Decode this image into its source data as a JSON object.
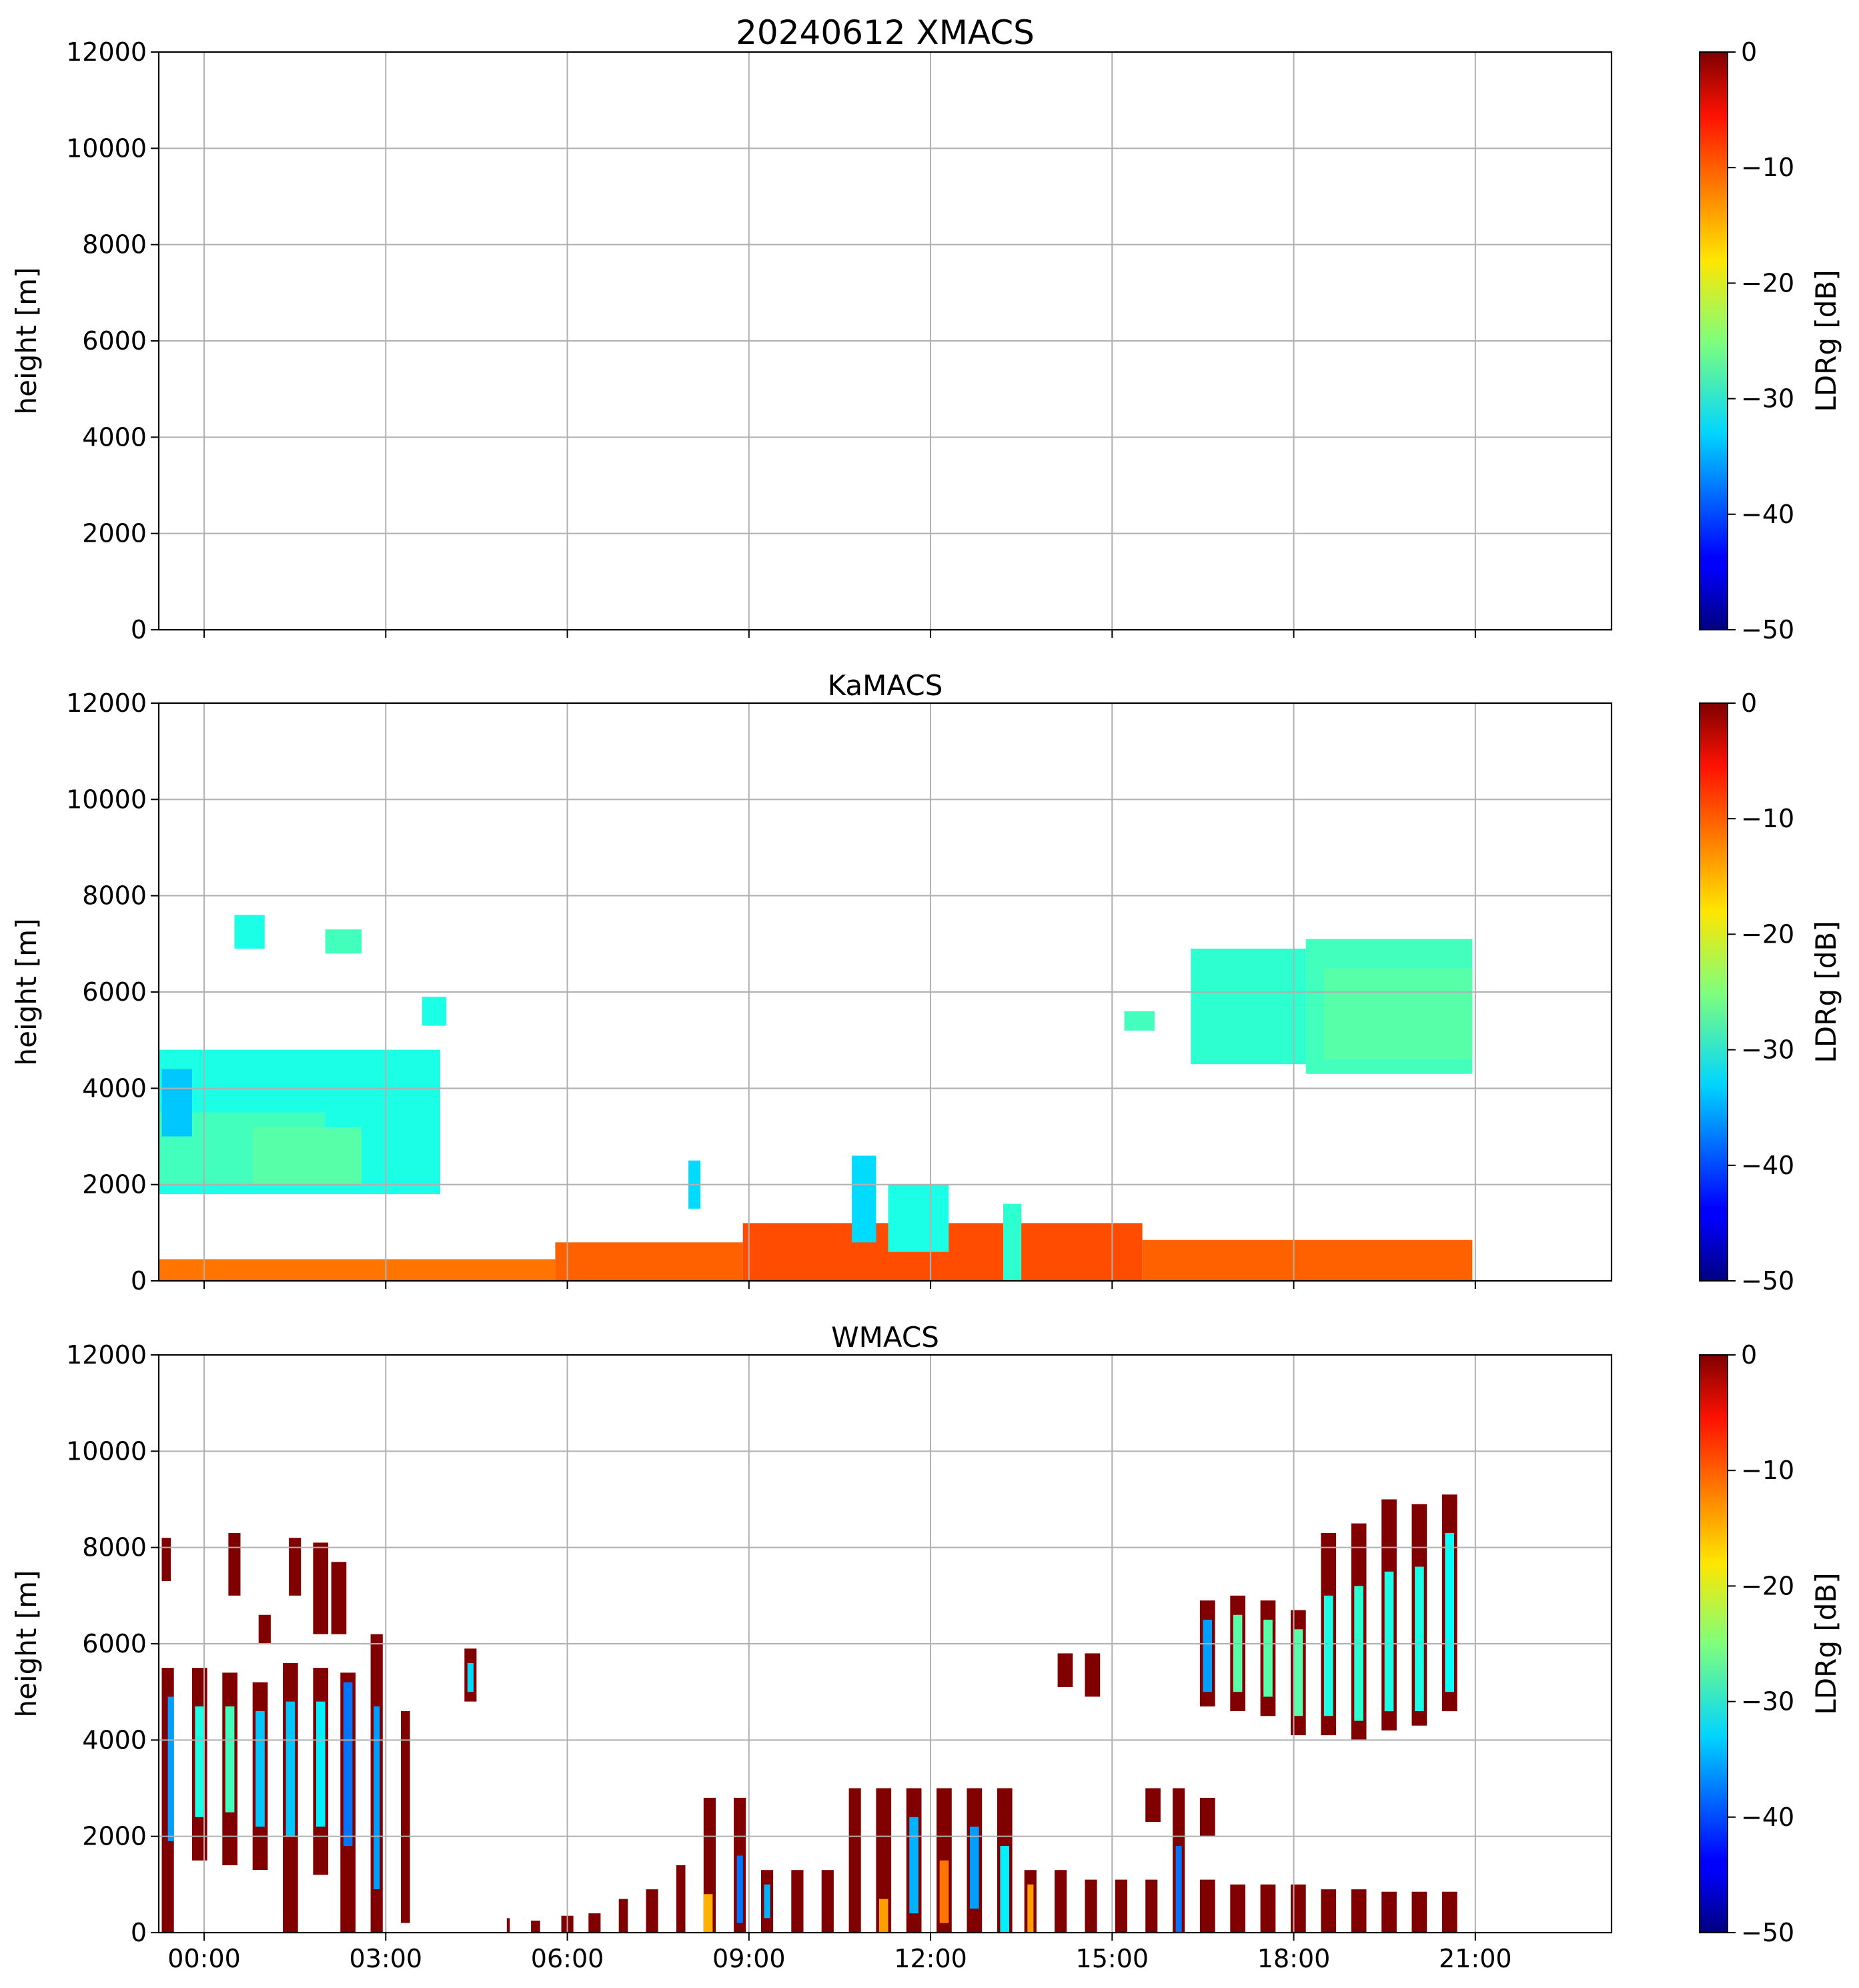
{
  "chart_data": [
    {
      "type": "heatmap",
      "title": "20240612 XMACS",
      "xlabel": "",
      "ylabel": "height [m]",
      "xlim_hours": [
        -0.75,
        23.25
      ],
      "ylim": [
        0,
        12000
      ],
      "yticks": [
        0,
        2000,
        4000,
        6000,
        8000,
        10000,
        12000
      ],
      "xticks_hours": [
        0,
        3,
        6,
        9,
        12,
        15,
        18,
        21
      ],
      "xtick_labels": [],
      "grid": true,
      "colorbar": {
        "label": "LDRg [dB]",
        "min": -50,
        "max": 0,
        "ticks": [
          0,
          -10,
          -20,
          -30,
          -40,
          -50
        ],
        "tick_labels": [
          "0",
          "−10",
          "−20",
          "−30",
          "−40",
          "−50"
        ],
        "colormap": "jet"
      },
      "regions": []
    },
    {
      "type": "heatmap",
      "title": "KaMACS",
      "xlabel": "",
      "ylabel": "height [m]",
      "xlim_hours": [
        -0.75,
        23.25
      ],
      "ylim": [
        0,
        12000
      ],
      "yticks": [
        0,
        2000,
        4000,
        6000,
        8000,
        10000,
        12000
      ],
      "xticks_hours": [
        0,
        3,
        6,
        9,
        12,
        15,
        18,
        21
      ],
      "xtick_labels": [],
      "grid": true,
      "colorbar": {
        "label": "LDRg [dB]",
        "min": -50,
        "max": 0,
        "ticks": [
          0,
          -10,
          -20,
          -30,
          -40,
          -50
        ],
        "tick_labels": [
          "0",
          "−10",
          "−20",
          "−30",
          "−40",
          "−50"
        ],
        "colormap": "jet"
      },
      "regions": [
        {
          "t0": -0.75,
          "t1": 3.9,
          "h0": 1800,
          "h1": 4800,
          "ldr": -30
        },
        {
          "t0": -0.75,
          "t1": 2.0,
          "h0": 2000,
          "h1": 3500,
          "ldr": -28
        },
        {
          "t0": 0.8,
          "t1": 2.6,
          "h0": 2000,
          "h1": 3200,
          "ldr": -27
        },
        {
          "t0": -0.7,
          "t1": -0.2,
          "h0": 3000,
          "h1": 4400,
          "ldr": -34
        },
        {
          "t0": -0.75,
          "t1": 5.8,
          "h0": 0,
          "h1": 450,
          "ldr": -12
        },
        {
          "t0": 5.8,
          "t1": 8.9,
          "h0": 0,
          "h1": 800,
          "ldr": -11
        },
        {
          "t0": 8.9,
          "t1": 15.5,
          "h0": 0,
          "h1": 1200,
          "ldr": -10
        },
        {
          "t0": 15.5,
          "t1": 20.95,
          "h0": 0,
          "h1": 850,
          "ldr": -11
        },
        {
          "t0": 10.7,
          "t1": 11.1,
          "h0": 800,
          "h1": 2600,
          "ldr": -33
        },
        {
          "t0": 11.3,
          "t1": 12.3,
          "h0": 600,
          "h1": 2000,
          "ldr": -30
        },
        {
          "t0": 13.2,
          "t1": 13.5,
          "h0": 0,
          "h1": 1600,
          "ldr": -29
        },
        {
          "t0": 8.0,
          "t1": 8.2,
          "h0": 1500,
          "h1": 2500,
          "ldr": -33
        },
        {
          "t0": 16.3,
          "t1": 18.2,
          "h0": 4500,
          "h1": 6900,
          "ldr": -29
        },
        {
          "t0": 18.2,
          "t1": 20.95,
          "h0": 4300,
          "h1": 7100,
          "ldr": -28
        },
        {
          "t0": 18.5,
          "t1": 20.95,
          "h0": 4600,
          "h1": 6500,
          "ldr": -27
        },
        {
          "t0": 3.6,
          "t1": 4.0,
          "h0": 5300,
          "h1": 5900,
          "ldr": -30
        },
        {
          "t0": 15.2,
          "t1": 15.7,
          "h0": 5200,
          "h1": 5600,
          "ldr": -28
        },
        {
          "t0": 0.5,
          "t1": 1.0,
          "h0": 6900,
          "h1": 7600,
          "ldr": -30
        },
        {
          "t0": 2.0,
          "t1": 2.6,
          "h0": 6800,
          "h1": 7300,
          "ldr": -28
        }
      ]
    },
    {
      "type": "heatmap",
      "title": "WMACS",
      "xlabel": "",
      "ylabel": "height [m]",
      "xlim_hours": [
        -0.75,
        23.25
      ],
      "ylim": [
        0,
        12000
      ],
      "yticks": [
        0,
        2000,
        4000,
        6000,
        8000,
        10000,
        12000
      ],
      "xticks_hours": [
        0,
        3,
        6,
        9,
        12,
        15,
        18,
        21
      ],
      "xtick_labels": [
        "00:00",
        "03:00",
        "06:00",
        "09:00",
        "12:00",
        "15:00",
        "18:00",
        "21:00"
      ],
      "grid": true,
      "colorbar": {
        "label": "LDRg [dB]",
        "min": -50,
        "max": 0,
        "ticks": [
          0,
          -10,
          -20,
          -30,
          -40,
          -50
        ],
        "tick_labels": [
          "0",
          "−10",
          "−20",
          "−30",
          "−40",
          "−50"
        ],
        "colormap": "jet"
      },
      "regions": [
        {
          "t0": -0.7,
          "t1": -0.5,
          "h0": 0,
          "h1": 5500,
          "ldr": 0
        },
        {
          "t0": -0.6,
          "t1": -0.5,
          "h0": 1900,
          "h1": 4900,
          "ldr": -36
        },
        {
          "t0": -0.7,
          "t1": -0.55,
          "h0": 7300,
          "h1": 8200,
          "ldr": 0
        },
        {
          "t0": -0.2,
          "t1": 0.05,
          "h0": 1500,
          "h1": 5500,
          "ldr": 0
        },
        {
          "t0": -0.15,
          "t1": 0.0,
          "h0": 2400,
          "h1": 4700,
          "ldr": -30
        },
        {
          "t0": 0.3,
          "t1": 0.55,
          "h0": 1400,
          "h1": 5400,
          "ldr": 0
        },
        {
          "t0": 0.35,
          "t1": 0.5,
          "h0": 2500,
          "h1": 4700,
          "ldr": -28
        },
        {
          "t0": 0.4,
          "t1": 0.6,
          "h0": 7000,
          "h1": 8300,
          "ldr": 0
        },
        {
          "t0": 0.8,
          "t1": 1.05,
          "h0": 1300,
          "h1": 5200,
          "ldr": 0
        },
        {
          "t0": 0.85,
          "t1": 1.0,
          "h0": 2200,
          "h1": 4600,
          "ldr": -34
        },
        {
          "t0": 0.9,
          "t1": 1.1,
          "h0": 6000,
          "h1": 6600,
          "ldr": 0
        },
        {
          "t0": 1.3,
          "t1": 1.55,
          "h0": 0,
          "h1": 5600,
          "ldr": 0
        },
        {
          "t0": 1.35,
          "t1": 1.5,
          "h0": 2000,
          "h1": 4800,
          "ldr": -34
        },
        {
          "t0": 1.4,
          "t1": 1.6,
          "h0": 7000,
          "h1": 8200,
          "ldr": 0
        },
        {
          "t0": 1.8,
          "t1": 2.05,
          "h0": 1200,
          "h1": 5500,
          "ldr": 0
        },
        {
          "t0": 1.85,
          "t1": 2.0,
          "h0": 2200,
          "h1": 4800,
          "ldr": -32
        },
        {
          "t0": 1.8,
          "t1": 2.05,
          "h0": 6200,
          "h1": 8100,
          "ldr": 0
        },
        {
          "t0": 2.25,
          "t1": 2.5,
          "h0": 0,
          "h1": 5400,
          "ldr": 0
        },
        {
          "t0": 2.3,
          "t1": 2.45,
          "h0": 1800,
          "h1": 5200,
          "ldr": -38
        },
        {
          "t0": 2.1,
          "t1": 2.35,
          "h0": 6200,
          "h1": 7700,
          "ldr": 0
        },
        {
          "t0": 2.75,
          "t1": 2.95,
          "h0": 0,
          "h1": 6200,
          "ldr": 0
        },
        {
          "t0": 2.8,
          "t1": 2.9,
          "h0": 900,
          "h1": 4700,
          "ldr": -36
        },
        {
          "t0": 3.25,
          "t1": 3.4,
          "h0": 200,
          "h1": 4600,
          "ldr": 0
        },
        {
          "t0": 4.3,
          "t1": 4.5,
          "h0": 4800,
          "h1": 5900,
          "ldr": 0
        },
        {
          "t0": 4.35,
          "t1": 4.45,
          "h0": 5000,
          "h1": 5600,
          "ldr": -33
        },
        {
          "t0": 5.0,
          "t1": 5.05,
          "h0": 0,
          "h1": 300,
          "ldr": 0
        },
        {
          "t0": 5.4,
          "t1": 5.55,
          "h0": 0,
          "h1": 250,
          "ldr": 0
        },
        {
          "t0": 5.9,
          "t1": 6.1,
          "h0": 0,
          "h1": 350,
          "ldr": 0
        },
        {
          "t0": 6.35,
          "t1": 6.55,
          "h0": 0,
          "h1": 400,
          "ldr": 0
        },
        {
          "t0": 6.85,
          "t1": 7.0,
          "h0": 0,
          "h1": 700,
          "ldr": 0
        },
        {
          "t0": 7.3,
          "t1": 7.5,
          "h0": 0,
          "h1": 900,
          "ldr": 0
        },
        {
          "t0": 7.8,
          "t1": 7.95,
          "h0": 0,
          "h1": 1400,
          "ldr": 0
        },
        {
          "t0": 8.25,
          "t1": 8.45,
          "h0": 0,
          "h1": 2800,
          "ldr": 0
        },
        {
          "t0": 8.25,
          "t1": 8.4,
          "h0": 0,
          "h1": 800,
          "ldr": -15
        },
        {
          "t0": 8.75,
          "t1": 8.95,
          "h0": 0,
          "h1": 2800,
          "ldr": 0
        },
        {
          "t0": 8.8,
          "t1": 8.9,
          "h0": 200,
          "h1": 1600,
          "ldr": -38
        },
        {
          "t0": 9.2,
          "t1": 9.4,
          "h0": 0,
          "h1": 1300,
          "ldr": 0
        },
        {
          "t0": 9.25,
          "t1": 9.35,
          "h0": 300,
          "h1": 1000,
          "ldr": -35
        },
        {
          "t0": 9.7,
          "t1": 9.9,
          "h0": 0,
          "h1": 1300,
          "ldr": 0
        },
        {
          "t0": 10.2,
          "t1": 10.4,
          "h0": 0,
          "h1": 1300,
          "ldr": 0
        },
        {
          "t0": 10.65,
          "t1": 10.85,
          "h0": 0,
          "h1": 3000,
          "ldr": 0
        },
        {
          "t0": 11.1,
          "t1": 11.35,
          "h0": 0,
          "h1": 3000,
          "ldr": 0
        },
        {
          "t0": 11.15,
          "t1": 11.3,
          "h0": 0,
          "h1": 700,
          "ldr": -14
        },
        {
          "t0": 11.6,
          "t1": 11.85,
          "h0": 0,
          "h1": 3000,
          "ldr": 0
        },
        {
          "t0": 11.65,
          "t1": 11.8,
          "h0": 400,
          "h1": 2400,
          "ldr": -35
        },
        {
          "t0": 12.1,
          "t1": 12.35,
          "h0": 0,
          "h1": 3000,
          "ldr": 0
        },
        {
          "t0": 12.15,
          "t1": 12.3,
          "h0": 200,
          "h1": 1500,
          "ldr": -12
        },
        {
          "t0": 12.6,
          "t1": 12.85,
          "h0": 0,
          "h1": 3000,
          "ldr": 0
        },
        {
          "t0": 12.65,
          "t1": 12.8,
          "h0": 500,
          "h1": 2200,
          "ldr": -36
        },
        {
          "t0": 13.1,
          "t1": 13.35,
          "h0": 0,
          "h1": 3000,
          "ldr": 0
        },
        {
          "t0": 13.15,
          "t1": 13.3,
          "h0": 0,
          "h1": 1800,
          "ldr": -32
        },
        {
          "t0": 13.55,
          "t1": 13.75,
          "h0": 0,
          "h1": 1300,
          "ldr": 0
        },
        {
          "t0": 13.6,
          "t1": 13.7,
          "h0": 0,
          "h1": 1000,
          "ldr": -14
        },
        {
          "t0": 14.05,
          "t1": 14.25,
          "h0": 0,
          "h1": 1300,
          "ldr": 0
        },
        {
          "t0": 14.55,
          "t1": 14.75,
          "h0": 0,
          "h1": 1100,
          "ldr": 0
        },
        {
          "t0": 14.1,
          "t1": 14.35,
          "h0": 5100,
          "h1": 5800,
          "ldr": 0
        },
        {
          "t0": 14.55,
          "t1": 14.8,
          "h0": 4900,
          "h1": 5800,
          "ldr": 0
        },
        {
          "t0": 15.05,
          "t1": 15.25,
          "h0": 0,
          "h1": 1100,
          "ldr": 0
        },
        {
          "t0": 15.55,
          "t1": 15.75,
          "h0": 0,
          "h1": 1100,
          "ldr": 0
        },
        {
          "t0": 15.55,
          "t1": 15.8,
          "h0": 2300,
          "h1": 3000,
          "ldr": 0
        },
        {
          "t0": 16.0,
          "t1": 16.2,
          "h0": 0,
          "h1": 3000,
          "ldr": 0
        },
        {
          "t0": 16.05,
          "t1": 16.15,
          "h0": 0,
          "h1": 1800,
          "ldr": -38
        },
        {
          "t0": 16.45,
          "t1": 16.7,
          "h0": 0,
          "h1": 1100,
          "ldr": 0
        },
        {
          "t0": 16.45,
          "t1": 16.7,
          "h0": 2000,
          "h1": 2800,
          "ldr": 0
        },
        {
          "t0": 16.45,
          "t1": 16.7,
          "h0": 4700,
          "h1": 6900,
          "ldr": 0
        },
        {
          "t0": 16.5,
          "t1": 16.65,
          "h0": 5000,
          "h1": 6500,
          "ldr": -36
        },
        {
          "t0": 16.95,
          "t1": 17.2,
          "h0": 0,
          "h1": 1000,
          "ldr": 0
        },
        {
          "t0": 16.95,
          "t1": 17.2,
          "h0": 4600,
          "h1": 7000,
          "ldr": 0
        },
        {
          "t0": 17.0,
          "t1": 17.15,
          "h0": 5000,
          "h1": 6600,
          "ldr": -27
        },
        {
          "t0": 17.45,
          "t1": 17.7,
          "h0": 0,
          "h1": 1000,
          "ldr": 0
        },
        {
          "t0": 17.45,
          "t1": 17.7,
          "h0": 4500,
          "h1": 6900,
          "ldr": 0
        },
        {
          "t0": 17.5,
          "t1": 17.65,
          "h0": 4900,
          "h1": 6500,
          "ldr": -27
        },
        {
          "t0": 17.95,
          "t1": 18.2,
          "h0": 0,
          "h1": 1000,
          "ldr": 0
        },
        {
          "t0": 17.95,
          "t1": 18.2,
          "h0": 4100,
          "h1": 6700,
          "ldr": 0
        },
        {
          "t0": 18.0,
          "t1": 18.15,
          "h0": 4500,
          "h1": 6300,
          "ldr": -27
        },
        {
          "t0": 18.45,
          "t1": 18.7,
          "h0": 0,
          "h1": 900,
          "ldr": 0
        },
        {
          "t0": 18.45,
          "t1": 18.7,
          "h0": 4100,
          "h1": 8300,
          "ldr": 0
        },
        {
          "t0": 18.5,
          "t1": 18.65,
          "h0": 4500,
          "h1": 7000,
          "ldr": -30
        },
        {
          "t0": 18.95,
          "t1": 19.2,
          "h0": 0,
          "h1": 900,
          "ldr": 0
        },
        {
          "t0": 18.95,
          "t1": 19.2,
          "h0": 4000,
          "h1": 8500,
          "ldr": 0
        },
        {
          "t0": 19.0,
          "t1": 19.15,
          "h0": 4400,
          "h1": 7200,
          "ldr": -29
        },
        {
          "t0": 19.45,
          "t1": 19.7,
          "h0": 0,
          "h1": 850,
          "ldr": 0
        },
        {
          "t0": 19.45,
          "t1": 19.7,
          "h0": 4200,
          "h1": 9000,
          "ldr": 0
        },
        {
          "t0": 19.5,
          "t1": 19.65,
          "h0": 4600,
          "h1": 7500,
          "ldr": -30
        },
        {
          "t0": 19.95,
          "t1": 20.2,
          "h0": 0,
          "h1": 850,
          "ldr": 0
        },
        {
          "t0": 19.95,
          "t1": 20.2,
          "h0": 4300,
          "h1": 8900,
          "ldr": 0
        },
        {
          "t0": 20.0,
          "t1": 20.15,
          "h0": 4600,
          "h1": 7600,
          "ldr": -30
        },
        {
          "t0": 20.45,
          "t1": 20.7,
          "h0": 0,
          "h1": 850,
          "ldr": 0
        },
        {
          "t0": 20.45,
          "t1": 20.7,
          "h0": 4600,
          "h1": 9100,
          "ldr": 0
        },
        {
          "t0": 20.5,
          "t1": 20.65,
          "h0": 5000,
          "h1": 8300,
          "ldr": -31
        }
      ]
    }
  ]
}
